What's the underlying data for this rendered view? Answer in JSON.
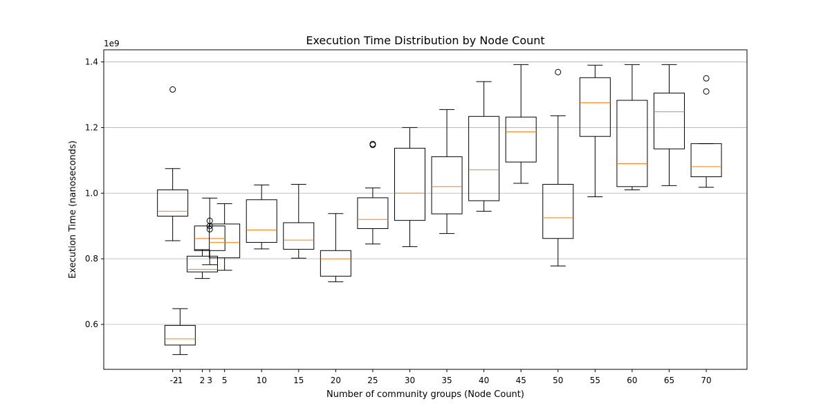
{
  "chart_data": {
    "type": "box",
    "title": "Execution Time Distribution by Node Count",
    "xlabel": "Number of community groups (Node Count)",
    "ylabel": "Execution Time (nanoseconds)",
    "y_offset_label": "1e9",
    "xlim": [
      -11.3,
      75.5
    ],
    "ylim": [
      0.463,
      1.437
    ],
    "yticks": [
      0.6,
      0.8,
      1.0,
      1.2,
      1.4
    ],
    "ytick_labels": [
      "0.6",
      "0.8",
      "1.0",
      "1.2",
      "1.4"
    ],
    "xticks": [
      -2,
      -1,
      2,
      3,
      5,
      10,
      15,
      20,
      25,
      30,
      35,
      40,
      45,
      50,
      55,
      60,
      65,
      70
    ],
    "xtick_labels": [
      "-2",
      "-1",
      "2",
      "3",
      "5",
      "10",
      "15",
      "20",
      "25",
      "30",
      "35",
      "40",
      "45",
      "50",
      "55",
      "60",
      "65",
      "70"
    ],
    "grid": "y",
    "colors": {
      "box": "#000000",
      "median": "#ff7f0e",
      "grid": "#b0b0b0",
      "outlier": "#000000"
    },
    "boxes": [
      {
        "x": -2,
        "whisker_low": 0.855,
        "q1": 0.93,
        "median": 0.945,
        "q3": 1.01,
        "whisker_high": 1.075,
        "outliers": [
          1.316
        ]
      },
      {
        "x": -1,
        "whisker_low": 0.508,
        "q1": 0.537,
        "median": 0.556,
        "q3": 0.597,
        "whisker_high": 0.648,
        "outliers": []
      },
      {
        "x": 2,
        "whisker_low": 0.74,
        "q1": 0.76,
        "median": 0.768,
        "q3": 0.808,
        "whisker_high": 0.828,
        "outliers": []
      },
      {
        "x": 3,
        "whisker_low": 0.782,
        "q1": 0.825,
        "median": 0.862,
        "q3": 0.9,
        "whisker_high": 0.985,
        "outliers": [
          0.89,
          0.9,
          0.916
        ]
      },
      {
        "x": 5,
        "whisker_low": 0.765,
        "q1": 0.803,
        "median": 0.85,
        "q3": 0.906,
        "whisker_high": 0.968,
        "outliers": []
      },
      {
        "x": 10,
        "whisker_low": 0.83,
        "q1": 0.85,
        "median": 0.888,
        "q3": 0.98,
        "whisker_high": 1.025,
        "outliers": []
      },
      {
        "x": 15,
        "whisker_low": 0.802,
        "q1": 0.829,
        "median": 0.857,
        "q3": 0.91,
        "whisker_high": 1.027,
        "outliers": []
      },
      {
        "x": 20,
        "whisker_low": 0.73,
        "q1": 0.747,
        "median": 0.8,
        "q3": 0.825,
        "whisker_high": 0.938,
        "outliers": []
      },
      {
        "x": 25,
        "whisker_low": 0.845,
        "q1": 0.892,
        "median": 0.92,
        "q3": 0.986,
        "whisker_high": 1.016,
        "outliers": [
          1.147,
          1.15
        ]
      },
      {
        "x": 30,
        "whisker_low": 0.837,
        "q1": 0.917,
        "median": 1.0,
        "q3": 1.137,
        "whisker_high": 1.2,
        "outliers": []
      },
      {
        "x": 35,
        "whisker_low": 0.877,
        "q1": 0.937,
        "median": 1.02,
        "q3": 1.111,
        "whisker_high": 1.255,
        "outliers": []
      },
      {
        "x": 40,
        "whisker_low": 0.945,
        "q1": 0.977,
        "median": 1.071,
        "q3": 1.234,
        "whisker_high": 1.34,
        "outliers": []
      },
      {
        "x": 45,
        "whisker_low": 1.03,
        "q1": 1.095,
        "median": 1.187,
        "q3": 1.232,
        "whisker_high": 1.392,
        "outliers": []
      },
      {
        "x": 50,
        "whisker_low": 0.778,
        "q1": 0.862,
        "median": 0.925,
        "q3": 1.027,
        "whisker_high": 1.236,
        "outliers": [
          1.369
        ]
      },
      {
        "x": 55,
        "whisker_low": 0.989,
        "q1": 1.173,
        "median": 1.276,
        "q3": 1.352,
        "whisker_high": 1.39,
        "outliers": []
      },
      {
        "x": 60,
        "whisker_low": 1.01,
        "q1": 1.02,
        "median": 1.09,
        "q3": 1.283,
        "whisker_high": 1.392,
        "outliers": []
      },
      {
        "x": 65,
        "whisker_low": 1.023,
        "q1": 1.135,
        "median": 1.248,
        "q3": 1.305,
        "whisker_high": 1.392,
        "outliers": []
      },
      {
        "x": 70,
        "whisker_low": 1.018,
        "q1": 1.05,
        "median": 1.081,
        "q3": 1.151,
        "whisker_high": 1.151,
        "outliers": [
          1.31,
          1.35
        ]
      }
    ]
  }
}
